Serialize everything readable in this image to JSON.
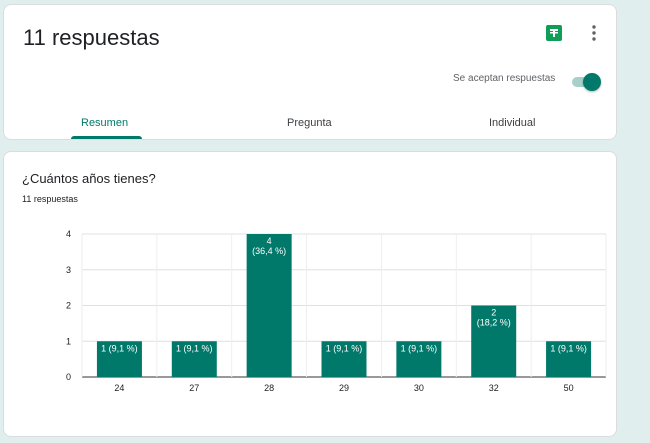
{
  "header": {
    "title": "11 respuestas",
    "accepting_label": "Se aceptan respuestas",
    "accepting_on": true,
    "sheets_icon": "google-sheets-icon",
    "more_icon": "more-vert-icon",
    "accent_color": "#00796b"
  },
  "tabs": [
    {
      "label": "Resumen",
      "active": true
    },
    {
      "label": "Pregunta",
      "active": false
    },
    {
      "label": "Individual",
      "active": false
    }
  ],
  "question": {
    "title": "¿Cuántos años tienes?",
    "response_count": "11 respuestas"
  },
  "chart_data": {
    "type": "bar",
    "categories": [
      "24",
      "27",
      "28",
      "29",
      "30",
      "32",
      "50"
    ],
    "values": [
      1,
      1,
      4,
      1,
      1,
      2,
      1
    ],
    "data_labels": [
      [
        "1 (9,1 %)"
      ],
      [
        "1 (9,1 %)"
      ],
      [
        "4",
        "(36,4 %)"
      ],
      [
        "1 (9,1 %)"
      ],
      [
        "1 (9,1 %)"
      ],
      [
        "2",
        "(18,2 %)"
      ],
      [
        "1 (9,1 %)"
      ]
    ],
    "yticks": [
      0,
      1,
      2,
      3,
      4
    ],
    "ylim": [
      0,
      4
    ],
    "grid": true,
    "bar_color": "#00796b"
  }
}
